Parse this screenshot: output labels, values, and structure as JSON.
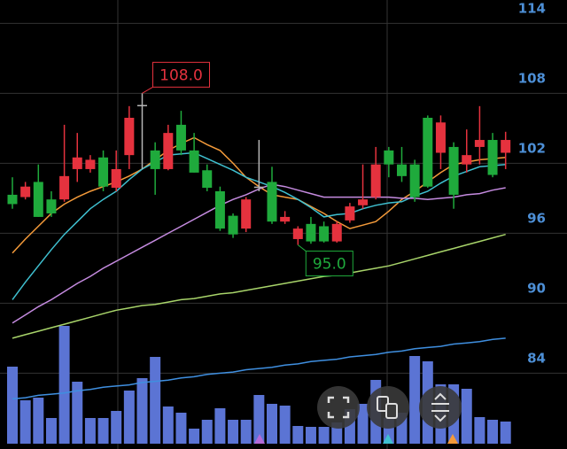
{
  "chart_data": {
    "type": "candlestick",
    "categories": [
      null,
      null,
      null,
      null,
      null,
      null,
      null,
      null,
      null,
      null,
      null,
      null,
      null,
      null,
      null,
      null,
      null,
      null,
      null,
      null,
      null,
      null,
      null,
      null,
      null,
      null,
      null,
      null,
      null,
      null,
      null,
      null,
      null,
      null,
      null,
      null,
      null,
      null,
      null
    ],
    "open": [
      99.3,
      99.1,
      100.4,
      98.9,
      98.9,
      101.5,
      101.5,
      102.5,
      99.9,
      102.7,
      107.0,
      103.1,
      101.5,
      105.3,
      103.1,
      101.4,
      99.6,
      97.5,
      96.4,
      100.0,
      100.4,
      97.0,
      95.5,
      96.8,
      96.6,
      95.3,
      97.1,
      98.4,
      99.1,
      103.1,
      101.9,
      101.9,
      105.9,
      102.9,
      103.4,
      101.9,
      103.4,
      104.0,
      102.9
    ],
    "high": [
      100.8,
      100.4,
      101.9,
      99.6,
      105.3,
      104.6,
      102.7,
      103.1,
      103.1,
      106.9,
      108.0,
      103.8,
      105.3,
      106.5,
      104.6,
      101.9,
      100.0,
      97.7,
      99.1,
      104.0,
      101.7,
      97.9,
      96.6,
      97.4,
      97.0,
      97.0,
      98.6,
      101.9,
      103.4,
      103.4,
      103.4,
      102.3,
      106.1,
      106.1,
      103.8,
      104.9,
      106.9,
      104.6,
      104.7
    ],
    "low": [
      98.1,
      98.9,
      97.4,
      97.4,
      98.7,
      100.4,
      101.2,
      99.6,
      99.6,
      101.5,
      101.5,
      99.3,
      101.4,
      102.7,
      101.2,
      99.6,
      96.2,
      95.6,
      96.1,
      99.6,
      96.8,
      96.8,
      95.0,
      95.1,
      95.2,
      95.2,
      96.9,
      98.1,
      98.9,
      100.8,
      100.4,
      98.7,
      99.9,
      101.5,
      98.1,
      101.2,
      101.9,
      100.8,
      101.5
    ],
    "close": [
      98.5,
      100.0,
      97.4,
      97.7,
      100.9,
      102.5,
      102.3,
      100.0,
      101.5,
      105.9,
      107.0,
      101.5,
      104.6,
      103.1,
      101.2,
      99.9,
      96.4,
      95.9,
      98.9,
      100.0,
      97.0,
      97.4,
      96.4,
      95.3,
      95.3,
      96.8,
      98.3,
      98.9,
      101.9,
      101.9,
      100.9,
      99.1,
      100.0,
      105.5,
      99.3,
      102.7,
      104.0,
      101.0,
      104.0
    ],
    "volume": [
      87,
      49,
      52,
      29,
      133,
      70,
      29,
      29,
      37,
      60,
      74,
      98,
      42,
      35,
      17,
      27,
      40,
      27,
      27,
      55,
      45,
      43,
      20,
      19,
      19,
      24,
      39,
      45,
      72,
      29,
      35,
      99,
      93,
      67,
      67,
      62,
      30,
      27,
      25
    ],
    "vlim": [
      0,
      140
    ],
    "volume_color": "#5b74d4",
    "up_color": "#e5323e",
    "down_color": "#1faa3c",
    "flat_color": "#b5b5b5",
    "lines": [
      {
        "color": "#f39a3a",
        "values": [
          94.3,
          95.5,
          96.6,
          97.7,
          98.5,
          99.1,
          99.6,
          100.0,
          100.4,
          100.9,
          101.5,
          102.3,
          103.1,
          103.7,
          104.2,
          103.6,
          103.1,
          102.0,
          100.8,
          100.0,
          99.3,
          99.1,
          98.9,
          98.3,
          97.7,
          97.0,
          96.4,
          96.7,
          97.0,
          97.9,
          98.9,
          99.6,
          100.4,
          101.2,
          101.9,
          102.1,
          102.3,
          102.4,
          102.5
        ]
      },
      {
        "color": "#3fc0d0",
        "values": [
          90.3,
          91.8,
          93.2,
          94.6,
          95.9,
          97.0,
          98.1,
          98.9,
          99.6,
          100.6,
          101.5,
          102.1,
          102.7,
          102.8,
          102.9,
          102.4,
          101.9,
          101.4,
          100.8,
          100.4,
          100.0,
          99.5,
          98.9,
          98.2,
          97.4,
          97.6,
          97.7,
          98.1,
          98.4,
          98.6,
          98.7,
          99.2,
          99.6,
          100.3,
          100.9,
          101.3,
          101.7,
          101.8,
          101.9
        ]
      },
      {
        "color": "#c58be0",
        "values": [
          88.3,
          89.0,
          89.7,
          90.3,
          91.0,
          91.7,
          92.3,
          93.0,
          93.6,
          94.2,
          94.8,
          95.4,
          96.0,
          96.6,
          97.2,
          97.8,
          98.4,
          98.9,
          99.3,
          99.8,
          100.2,
          100.0,
          99.7,
          99.4,
          99.1,
          99.1,
          99.1,
          99.1,
          99.1,
          99.1,
          99.0,
          99.0,
          98.9,
          99.0,
          99.1,
          99.3,
          99.4,
          99.7,
          99.9
        ]
      },
      {
        "color": "#a8d46a",
        "values": [
          87.0,
          87.3,
          87.6,
          87.9,
          88.2,
          88.5,
          88.8,
          89.1,
          89.4,
          89.6,
          89.8,
          89.9,
          90.1,
          90.3,
          90.4,
          90.6,
          90.8,
          90.9,
          91.1,
          91.3,
          91.5,
          91.7,
          91.9,
          92.1,
          92.3,
          92.4,
          92.6,
          92.8,
          93.0,
          93.2,
          93.5,
          93.8,
          94.1,
          94.4,
          94.7,
          95.0,
          95.3,
          95.6,
          95.9
        ]
      },
      {
        "color": "#3f8fe0",
        "values": [
          81.8,
          81.9,
          82.1,
          82.2,
          82.3,
          82.5,
          82.6,
          82.8,
          82.9,
          83.0,
          83.2,
          83.3,
          83.4,
          83.6,
          83.7,
          83.9,
          84.0,
          84.1,
          84.3,
          84.4,
          84.5,
          84.7,
          84.8,
          85.0,
          85.1,
          85.2,
          85.4,
          85.5,
          85.6,
          85.8,
          85.9,
          86.1,
          86.2,
          86.3,
          86.5,
          86.6,
          86.7,
          86.9,
          87.0
        ]
      }
    ],
    "annotations": [
      {
        "value": 108.0,
        "label": "108.0"
      },
      {
        "value": 95.0,
        "label": "95.0"
      }
    ],
    "ylim": [
      77.5,
      116
    ],
    "yticks": [
      114,
      108,
      102,
      96,
      90,
      84
    ],
    "grid": true
  }
}
